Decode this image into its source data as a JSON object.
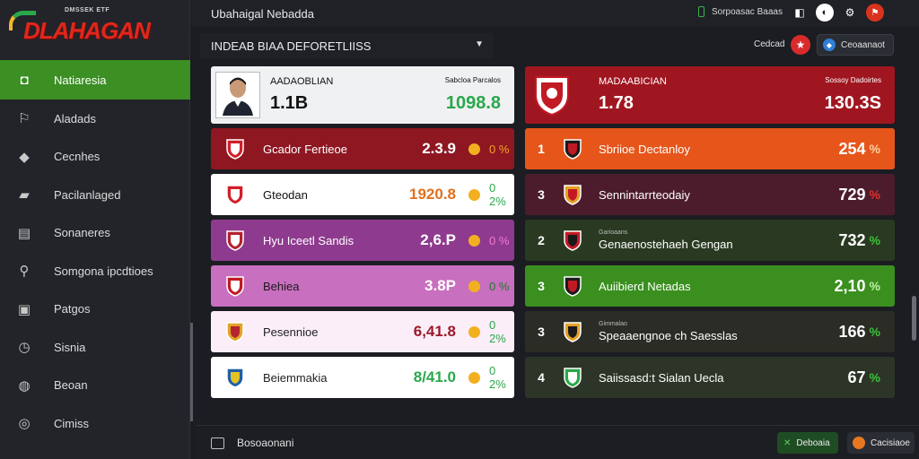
{
  "logo": {
    "small": "DMSSEK ETF",
    "text": "DLAHAGAN"
  },
  "sidebar": {
    "items": [
      {
        "label": "Natiaresia",
        "icon": "home-icon",
        "active": true
      },
      {
        "label": "Aladads",
        "icon": "flag-icon"
      },
      {
        "label": "Cecnhes",
        "icon": "tag-icon"
      },
      {
        "label": "Pacilanlaged",
        "icon": "chat-icon"
      },
      {
        "label": "Sonaneres",
        "icon": "folder-icon"
      },
      {
        "label": "Somgona ipcdtioes",
        "icon": "search-icon"
      },
      {
        "label": "Patgos",
        "icon": "document-icon"
      },
      {
        "label": "Sisnia",
        "icon": "clock-icon"
      },
      {
        "label": "Beoan",
        "icon": "power-icon"
      },
      {
        "label": "Cimiss",
        "icon": "coin-icon"
      }
    ]
  },
  "topbar": {
    "title": "Ubahaigal Nebadda",
    "status_label": "Sorpoasac Baaas",
    "icons": [
      "swatch-icon",
      "moon-icon",
      "settings-icon",
      "flag-icon"
    ]
  },
  "header": {
    "dropdown_value": "INDEAB BIAA DEFORETLIISS",
    "label": "Cedcad",
    "button_label": "Ceoaanaot"
  },
  "left_column": {
    "hero": {
      "name": "AADAOBLIAN",
      "value": "1.1B",
      "col_label": "Sabcloa  Parcalos",
      "score": "1098.8"
    },
    "rows": [
      {
        "name": "Gcador Fertieoe",
        "value": "2.3.9",
        "pct": "0 %",
        "bg": "#8e1722",
        "fg": "#ffffff",
        "val_color": "#ffffff",
        "pct_color": "#f5a623"
      },
      {
        "name": "Gteodan",
        "value": "1920.8",
        "pct": "0 2%",
        "bg": "#ffffff",
        "fg": "#111111",
        "val_color": "#e0701d",
        "pct_color": "#2aa84a"
      },
      {
        "name": "Hyu Iceetl Sandis",
        "value": "2,6.P",
        "pct": "0 %",
        "bg": "#8e3a8e",
        "fg": "#ffffff",
        "val_color": "#ffffff",
        "pct_color": "#f27bd0"
      },
      {
        "name": "Behiea",
        "value": "3.8P",
        "pct": "0 %",
        "bg": "#c86fbf",
        "fg": "#1a1a1a",
        "val_color": "#ffffff",
        "pct_color": "#1f7a26"
      },
      {
        "name": "Pesennioe",
        "value": "6,41.8",
        "pct": "0 2%",
        "bg": "#fbeef9",
        "fg": "#222222",
        "val_color": "#9a1a2a",
        "pct_color": "#2aa84a"
      },
      {
        "name": "Beiemmakia",
        "value": "8/41.0",
        "pct": "0 2%",
        "bg": "#ffffff",
        "fg": "#222222",
        "val_color": "#2aa84a",
        "pct_color": "#2aa84a"
      }
    ]
  },
  "right_column": {
    "hero": {
      "name": "MADAABICIAN",
      "value": "1.78",
      "col_label": "Sossoy  Dadoirtes",
      "score": "130.3S"
    },
    "rows": [
      {
        "rank": "1",
        "sub": "",
        "name": "Sbriioe Dectanloy",
        "score": "254",
        "pct": "%",
        "bg": "#e6561b",
        "pct_color": "#ffd0a0"
      },
      {
        "rank": "3",
        "sub": "",
        "name": "Sennintarrteodaiy",
        "score": "729",
        "pct": "%",
        "bg": "#4c1c2d",
        "pct_color": "#e0302a"
      },
      {
        "rank": "2",
        "sub": "Garioaans",
        "name": "Genaenostehaeh Gengan",
        "score": "732",
        "pct": "%",
        "bg": "#2a3a22",
        "pct_color": "#3ac13a"
      },
      {
        "rank": "3",
        "sub": "",
        "name": "Auiibierd Netadas",
        "score": "2,10",
        "pct": "%",
        "bg": "#3a8f1f",
        "pct_color": "#bdf0a0"
      },
      {
        "rank": "3",
        "sub": "Gimmalao",
        "name": "Speaaengnoe ch Saesslas",
        "score": "166",
        "pct": "%",
        "bg": "#2a2c25",
        "pct_color": "#3ac13a"
      },
      {
        "rank": "4",
        "sub": "",
        "name": "Saiissasd:t Sialan Uecla",
        "score": "67",
        "pct": "%",
        "bg": "#2c3527",
        "pct_color": "#3ac13a"
      }
    ]
  },
  "bottombar": {
    "left_label": "Bosoaonani",
    "btn1": "Deboaia",
    "btn2": "Cacisiaoe"
  }
}
